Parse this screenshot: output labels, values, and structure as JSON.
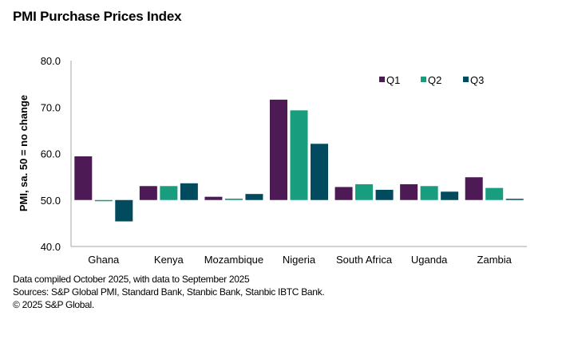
{
  "chart_data": {
    "type": "bar",
    "title": "PMI Purchase Prices Index",
    "xlabel": "",
    "ylabel": "PMI, sa. 50 = no change",
    "ylim": [
      40,
      80
    ],
    "baseline": 50,
    "yticks": [
      40,
      50,
      60,
      70,
      80
    ],
    "ytick_labels": [
      "40.0",
      "50.0",
      "60.0",
      "70.0",
      "80.0"
    ],
    "categories": [
      "Ghana",
      "Kenya",
      "Mozambique",
      "Nigeria",
      "South Africa",
      "Uganda",
      "Zambia"
    ],
    "series": [
      {
        "name": "Q1",
        "color": "#4E1A55",
        "values": [
          59.4,
          53.0,
          50.7,
          71.6,
          52.8,
          53.4,
          54.9
        ]
      },
      {
        "name": "Q2",
        "color": "#189E7E",
        "values": [
          49.8,
          53.0,
          50.3,
          69.3,
          53.4,
          53.0,
          52.6
        ]
      },
      {
        "name": "Q3",
        "color": "#024A5E",
        "values": [
          45.4,
          53.6,
          51.3,
          62.1,
          52.2,
          51.8,
          50.2
        ]
      }
    ],
    "legend": {
      "position": "top-right",
      "entries": [
        "Q1",
        "Q2",
        "Q3"
      ]
    },
    "grid": false
  },
  "footer": {
    "line1": "Data compiled October 2025, with data to September 2025",
    "line2": "Sources: S&P Global PMI, Standard Bank, Stanbic Bank, Stanbic IBTC Bank.",
    "line3": "© 2025 S&P Global."
  }
}
